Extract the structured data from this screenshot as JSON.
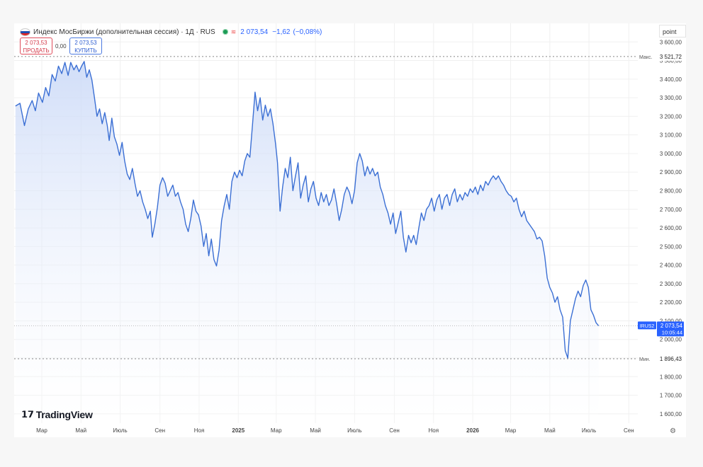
{
  "header": {
    "symbol_title": "Индекс МосБиржи (дополнительная сессия) · 1Д · RUS",
    "last_price": "2 073,54",
    "change": "−1,62",
    "change_pct": "(−0,08%)",
    "unit_label": "point"
  },
  "trade": {
    "sell_price": "2 073,53",
    "sell_label": "ПРОДАТЬ",
    "spread": "0,00",
    "buy_price": "2 073,53",
    "buy_label": "КУПИТЬ"
  },
  "markers": {
    "max_label": "Макс.",
    "max_value": "3 521,72",
    "min_label": "Мин.",
    "min_value": "1 896,43",
    "symbol_tag": "IRUS2",
    "symbol_price": "2 073,54",
    "countdown": "10:05:44"
  },
  "logo_text": "TradingView",
  "colors": {
    "line": "#3b6fd4",
    "fill_top": "#c9d8f7",
    "fill_bottom": "#ffffff",
    "grid": "#f0f0f0",
    "label_bg": "#2962ff"
  },
  "chart_data": {
    "type": "area",
    "title": "Индекс МосБиржи (дополнительная сессия)",
    "xlabel": "",
    "ylabel": "",
    "ylim": [
      1550,
      3700
    ],
    "grid": true,
    "y_ticks": [
      1600,
      1700,
      1800,
      1900,
      2000,
      2100,
      2200,
      2300,
      2400,
      2500,
      2600,
      2700,
      2800,
      2900,
      3000,
      3100,
      3200,
      3300,
      3400,
      3500,
      3600
    ],
    "y_tick_labels": [
      "1 600,00",
      "1 700,00",
      "1 800,00",
      "1 900,00",
      "2 000,00",
      "2 100,00",
      "2 200,00",
      "2 300,00",
      "2 400,00",
      "2 500,00",
      "2 600,00",
      "2 700,00",
      "2 800,00",
      "2 900,00",
      "3 000,00",
      "3 100,00",
      "3 200,00",
      "3 300,00",
      "3 400,00",
      "3 500,00",
      "3 600,00"
    ],
    "x_ticks": [
      {
        "label": "Мар",
        "x": "2024-03-01",
        "bold": false
      },
      {
        "label": "Май",
        "x": "2024-05-01",
        "bold": false
      },
      {
        "label": "Июль",
        "x": "2024-07-01",
        "bold": false
      },
      {
        "label": "Сен",
        "x": "2024-09-01",
        "bold": false
      },
      {
        "label": "Ноя",
        "x": "2024-11-01",
        "bold": false
      },
      {
        "label": "2025",
        "x": "2025-01-01",
        "bold": true
      },
      {
        "label": "Мар",
        "x": "2025-03-01",
        "bold": false
      },
      {
        "label": "Май",
        "x": "2025-05-01",
        "bold": false
      },
      {
        "label": "Июль",
        "x": "2025-07-01",
        "bold": false
      },
      {
        "label": "Сен",
        "x": "2025-09-01",
        "bold": false
      },
      {
        "label": "Ноя",
        "x": "2025-11-01",
        "bold": false
      },
      {
        "label": "2026",
        "x": "2026-01-01",
        "bold": true
      },
      {
        "label": "Мар",
        "x": "2026-03-01",
        "bold": false
      },
      {
        "label": "Май",
        "x": "2026-05-01",
        "bold": false
      },
      {
        "label": "Июль",
        "x": "2026-07-01",
        "bold": false
      },
      {
        "label": "Сен",
        "x": "2026-09-01",
        "bold": false
      }
    ],
    "max_line": 3521.72,
    "min_line": 1896.43,
    "current": 2073.54,
    "series": [
      {
        "points": [
          [
            "2024-01-20",
            3255
          ],
          [
            "2024-01-27",
            3270
          ],
          [
            "2024-02-03",
            3150
          ],
          [
            "2024-02-09",
            3240
          ],
          [
            "2024-02-15",
            3285
          ],
          [
            "2024-02-20",
            3230
          ],
          [
            "2024-02-25",
            3325
          ],
          [
            "2024-03-02",
            3275
          ],
          [
            "2024-03-07",
            3355
          ],
          [
            "2024-03-12",
            3310
          ],
          [
            "2024-03-17",
            3425
          ],
          [
            "2024-03-22",
            3390
          ],
          [
            "2024-03-27",
            3470
          ],
          [
            "2024-04-01",
            3430
          ],
          [
            "2024-04-06",
            3490
          ],
          [
            "2024-04-11",
            3420
          ],
          [
            "2024-04-15",
            3490
          ],
          [
            "2024-04-20",
            3450
          ],
          [
            "2024-04-24",
            3475
          ],
          [
            "2024-04-28",
            3440
          ],
          [
            "2024-05-02",
            3470
          ],
          [
            "2024-05-06",
            3495
          ],
          [
            "2024-05-10",
            3410
          ],
          [
            "2024-05-14",
            3450
          ],
          [
            "2024-05-18",
            3395
          ],
          [
            "2024-05-22",
            3300
          ],
          [
            "2024-05-26",
            3200
          ],
          [
            "2024-05-30",
            3240
          ],
          [
            "2024-06-03",
            3160
          ],
          [
            "2024-06-07",
            3220
          ],
          [
            "2024-06-11",
            3150
          ],
          [
            "2024-06-14",
            3070
          ],
          [
            "2024-06-18",
            3190
          ],
          [
            "2024-06-22",
            3090
          ],
          [
            "2024-06-26",
            3050
          ],
          [
            "2024-06-30",
            2990
          ],
          [
            "2024-07-04",
            3060
          ],
          [
            "2024-07-08",
            2960
          ],
          [
            "2024-07-12",
            2890
          ],
          [
            "2024-07-16",
            2860
          ],
          [
            "2024-07-20",
            2920
          ],
          [
            "2024-07-24",
            2840
          ],
          [
            "2024-07-28",
            2770
          ],
          [
            "2024-08-01",
            2800
          ],
          [
            "2024-08-05",
            2740
          ],
          [
            "2024-08-09",
            2700
          ],
          [
            "2024-08-13",
            2650
          ],
          [
            "2024-08-17",
            2690
          ],
          [
            "2024-08-20",
            2550
          ],
          [
            "2024-08-24",
            2620
          ],
          [
            "2024-08-28",
            2710
          ],
          [
            "2024-09-01",
            2830
          ],
          [
            "2024-09-05",
            2870
          ],
          [
            "2024-09-09",
            2840
          ],
          [
            "2024-09-13",
            2770
          ],
          [
            "2024-09-17",
            2800
          ],
          [
            "2024-09-21",
            2830
          ],
          [
            "2024-09-25",
            2770
          ],
          [
            "2024-09-29",
            2790
          ],
          [
            "2024-10-03",
            2740
          ],
          [
            "2024-10-07",
            2700
          ],
          [
            "2024-10-11",
            2620
          ],
          [
            "2024-10-15",
            2580
          ],
          [
            "2024-10-19",
            2650
          ],
          [
            "2024-10-23",
            2750
          ],
          [
            "2024-10-27",
            2690
          ],
          [
            "2024-10-31",
            2670
          ],
          [
            "2024-11-04",
            2610
          ],
          [
            "2024-11-08",
            2500
          ],
          [
            "2024-11-12",
            2570
          ],
          [
            "2024-11-16",
            2450
          ],
          [
            "2024-11-20",
            2540
          ],
          [
            "2024-11-24",
            2430
          ],
          [
            "2024-11-28",
            2395
          ],
          [
            "2024-12-02",
            2480
          ],
          [
            "2024-12-06",
            2640
          ],
          [
            "2024-12-10",
            2720
          ],
          [
            "2024-12-14",
            2780
          ],
          [
            "2024-12-18",
            2700
          ],
          [
            "2024-12-22",
            2850
          ],
          [
            "2024-12-26",
            2900
          ],
          [
            "2024-12-30",
            2870
          ],
          [
            "2025-01-03",
            2910
          ],
          [
            "2025-01-07",
            2880
          ],
          [
            "2025-01-11",
            2960
          ],
          [
            "2025-01-15",
            3000
          ],
          [
            "2025-01-19",
            2980
          ],
          [
            "2025-01-23",
            3150
          ],
          [
            "2025-01-27",
            3330
          ],
          [
            "2025-01-31",
            3230
          ],
          [
            "2025-02-04",
            3300
          ],
          [
            "2025-02-08",
            3180
          ],
          [
            "2025-02-12",
            3260
          ],
          [
            "2025-02-16",
            3200
          ],
          [
            "2025-02-20",
            3240
          ],
          [
            "2025-02-24",
            3160
          ],
          [
            "2025-02-28",
            3050
          ],
          [
            "2025-03-03",
            2950
          ],
          [
            "2025-03-07",
            2690
          ],
          [
            "2025-03-11",
            2820
          ],
          [
            "2025-03-15",
            2920
          ],
          [
            "2025-03-19",
            2870
          ],
          [
            "2025-03-23",
            2980
          ],
          [
            "2025-03-27",
            2800
          ],
          [
            "2025-03-31",
            2880
          ],
          [
            "2025-04-04",
            2950
          ],
          [
            "2025-04-08",
            2760
          ],
          [
            "2025-04-12",
            2830
          ],
          [
            "2025-04-16",
            2880
          ],
          [
            "2025-04-20",
            2740
          ],
          [
            "2025-04-24",
            2810
          ],
          [
            "2025-04-28",
            2850
          ],
          [
            "2025-05-02",
            2760
          ],
          [
            "2025-05-06",
            2720
          ],
          [
            "2025-05-10",
            2790
          ],
          [
            "2025-05-14",
            2740
          ],
          [
            "2025-05-18",
            2780
          ],
          [
            "2025-05-22",
            2720
          ],
          [
            "2025-05-26",
            2750
          ],
          [
            "2025-05-30",
            2810
          ],
          [
            "2025-06-03",
            2730
          ],
          [
            "2025-06-07",
            2640
          ],
          [
            "2025-06-11",
            2700
          ],
          [
            "2025-06-15",
            2780
          ],
          [
            "2025-06-19",
            2820
          ],
          [
            "2025-06-23",
            2790
          ],
          [
            "2025-06-27",
            2730
          ],
          [
            "2025-07-01",
            2800
          ],
          [
            "2025-07-05",
            2950
          ],
          [
            "2025-07-09",
            3000
          ],
          [
            "2025-07-13",
            2960
          ],
          [
            "2025-07-17",
            2880
          ],
          [
            "2025-07-21",
            2930
          ],
          [
            "2025-07-25",
            2890
          ],
          [
            "2025-07-29",
            2920
          ],
          [
            "2025-08-02",
            2880
          ],
          [
            "2025-08-06",
            2900
          ],
          [
            "2025-08-10",
            2820
          ],
          [
            "2025-08-14",
            2780
          ],
          [
            "2025-08-18",
            2720
          ],
          [
            "2025-08-22",
            2680
          ],
          [
            "2025-08-26",
            2620
          ],
          [
            "2025-08-30",
            2680
          ],
          [
            "2025-09-03",
            2570
          ],
          [
            "2025-09-07",
            2630
          ],
          [
            "2025-09-11",
            2690
          ],
          [
            "2025-09-15",
            2550
          ],
          [
            "2025-09-19",
            2470
          ],
          [
            "2025-09-23",
            2560
          ],
          [
            "2025-09-27",
            2520
          ],
          [
            "2025-10-01",
            2560
          ],
          [
            "2025-10-05",
            2510
          ],
          [
            "2025-10-09",
            2600
          ],
          [
            "2025-10-13",
            2680
          ],
          [
            "2025-10-17",
            2640
          ],
          [
            "2025-10-21",
            2700
          ],
          [
            "2025-10-25",
            2720
          ],
          [
            "2025-10-29",
            2760
          ],
          [
            "2025-11-02",
            2690
          ],
          [
            "2025-11-06",
            2750
          ],
          [
            "2025-11-10",
            2780
          ],
          [
            "2025-11-14",
            2700
          ],
          [
            "2025-11-18",
            2760
          ],
          [
            "2025-11-22",
            2780
          ],
          [
            "2025-11-26",
            2720
          ],
          [
            "2025-11-30",
            2780
          ],
          [
            "2025-12-04",
            2810
          ],
          [
            "2025-12-08",
            2740
          ],
          [
            "2025-12-12",
            2780
          ],
          [
            "2025-12-16",
            2750
          ],
          [
            "2025-12-20",
            2790
          ],
          [
            "2025-12-24",
            2770
          ],
          [
            "2025-12-28",
            2810
          ],
          [
            "2026-01-01",
            2790
          ],
          [
            "2026-01-05",
            2820
          ],
          [
            "2026-01-09",
            2780
          ],
          [
            "2026-01-13",
            2830
          ],
          [
            "2026-01-17",
            2800
          ],
          [
            "2026-01-21",
            2850
          ],
          [
            "2026-01-25",
            2830
          ],
          [
            "2026-01-29",
            2860
          ],
          [
            "2026-02-02",
            2880
          ],
          [
            "2026-02-06",
            2860
          ],
          [
            "2026-02-10",
            2880
          ],
          [
            "2026-02-14",
            2850
          ],
          [
            "2026-02-18",
            2830
          ],
          [
            "2026-02-22",
            2800
          ],
          [
            "2026-02-26",
            2780
          ],
          [
            "2026-03-02",
            2770
          ],
          [
            "2026-03-06",
            2740
          ],
          [
            "2026-03-10",
            2760
          ],
          [
            "2026-03-14",
            2700
          ],
          [
            "2026-03-18",
            2660
          ],
          [
            "2026-03-22",
            2690
          ],
          [
            "2026-03-26",
            2640
          ],
          [
            "2026-03-30",
            2620
          ],
          [
            "2026-04-03",
            2600
          ],
          [
            "2026-04-07",
            2580
          ],
          [
            "2026-04-11",
            2540
          ],
          [
            "2026-04-15",
            2550
          ],
          [
            "2026-04-19",
            2530
          ],
          [
            "2026-04-23",
            2450
          ],
          [
            "2026-04-27",
            2330
          ],
          [
            "2026-05-01",
            2280
          ],
          [
            "2026-05-05",
            2250
          ],
          [
            "2026-05-09",
            2200
          ],
          [
            "2026-05-13",
            2230
          ],
          [
            "2026-05-17",
            2160
          ],
          [
            "2026-05-21",
            2120
          ],
          [
            "2026-05-25",
            1940
          ],
          [
            "2026-05-29",
            1900
          ],
          [
            "2026-06-02",
            2100
          ],
          [
            "2026-06-06",
            2160
          ],
          [
            "2026-06-10",
            2220
          ],
          [
            "2026-06-14",
            2260
          ],
          [
            "2026-06-18",
            2230
          ],
          [
            "2026-06-22",
            2290
          ],
          [
            "2026-06-26",
            2320
          ],
          [
            "2026-06-30",
            2280
          ],
          [
            "2026-07-04",
            2160
          ],
          [
            "2026-07-08",
            2130
          ],
          [
            "2026-07-12",
            2090
          ],
          [
            "2026-07-16",
            2073.54
          ]
        ]
      }
    ]
  }
}
